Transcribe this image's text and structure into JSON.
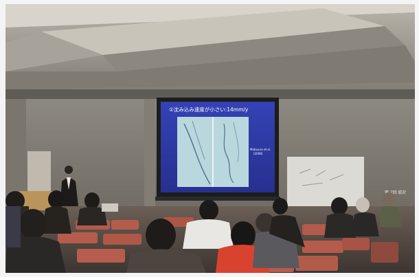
{
  "slide": {
    "title": "①沈み込み速度が小さい:14mm/y",
    "side_label_line1": "Matsuura et al.",
    "side_label_line2": "(2008)"
  },
  "wall_sign": "第 7回 統計",
  "colors": {
    "frame": "#f2f2f2",
    "ceiling_light": "#cfcbc2",
    "ceiling_dark": "#6e6a62",
    "wall": "#9a978f",
    "screen_border": "#1a1a1a",
    "slide_bg": "#2f3aa6",
    "map_panel": "#b8d8de",
    "chair_red": "#b85a4c",
    "floor": "#6a5e55"
  }
}
